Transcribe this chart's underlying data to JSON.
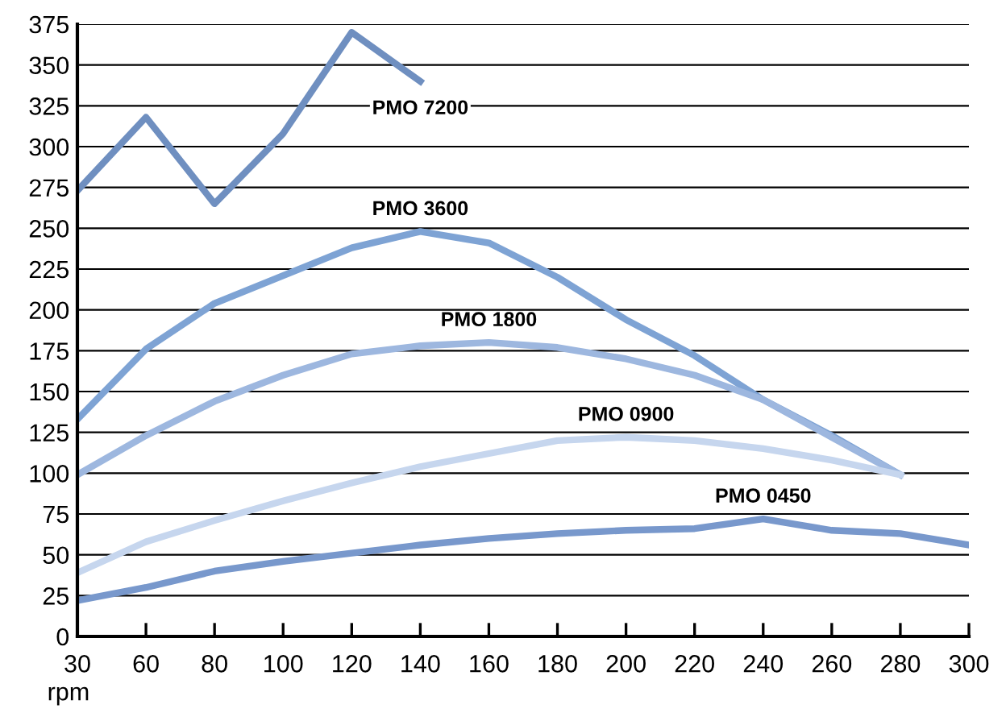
{
  "chart_data": {
    "type": "line",
    "xlabel": "rpm",
    "categories": [
      "30",
      "60",
      "80",
      "100",
      "120",
      "140",
      "160",
      "180",
      "200",
      "220",
      "240",
      "260",
      "280",
      "300"
    ],
    "series": [
      {
        "name": "PMO 7200",
        "color": "#6f8fc0",
        "values": [
          273,
          318,
          265,
          308,
          370,
          340,
          null,
          null,
          null,
          null,
          null,
          null,
          null,
          null
        ]
      },
      {
        "name": "PMO 3600",
        "color": "#7ea3d4",
        "values": [
          133,
          176,
          204,
          221,
          238,
          248,
          241,
          220,
          194,
          172,
          145,
          123,
          99,
          null
        ]
      },
      {
        "name": "PMO 1800",
        "color": "#9db7df",
        "values": [
          99,
          123,
          144,
          160,
          173,
          178,
          180,
          177,
          170,
          160,
          145,
          122,
          99,
          null
        ]
      },
      {
        "name": "PMO 0900",
        "color": "#c6d6ee",
        "values": [
          39,
          58,
          71,
          83,
          94,
          104,
          112,
          120,
          122,
          120,
          115,
          108,
          99,
          null
        ]
      },
      {
        "name": "PMO 0450",
        "color": "#7898cc",
        "values": [
          22,
          30,
          40,
          46,
          51,
          56,
          60,
          63,
          65,
          66,
          72,
          65,
          63,
          56
        ]
      }
    ],
    "ylim": [
      0,
      375
    ],
    "yticks": [
      0,
      25,
      50,
      75,
      100,
      125,
      150,
      175,
      200,
      225,
      250,
      275,
      300,
      325,
      350,
      375
    ],
    "grid": "y",
    "legend": false,
    "marker": "none",
    "line_style": "solid"
  }
}
